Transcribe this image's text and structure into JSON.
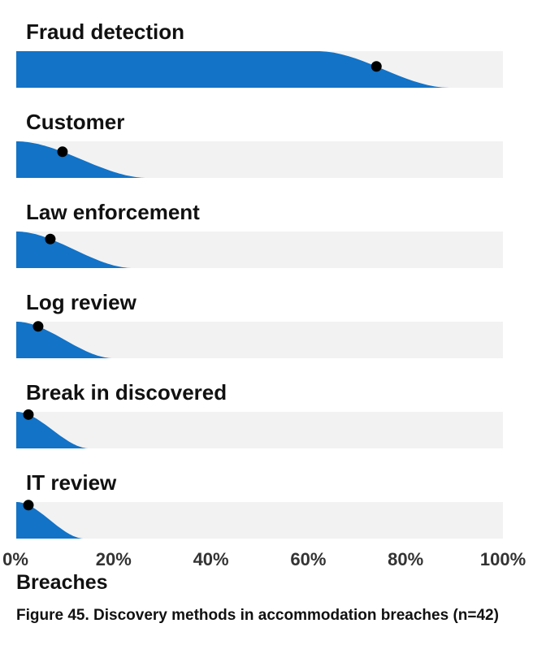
{
  "caption": "Figure 45. Discovery methods in accommodation breaches (n=42)",
  "colors": {
    "fill": "#1273c7",
    "track": "#f2f2f2",
    "point": "#000000",
    "text": "#111111"
  },
  "chart_data": {
    "type": "area",
    "chart_style": "slab interval (half-eye distribution with point estimate)",
    "categories": [
      "Fraud detection",
      "Customer",
      "Law enforcement",
      "Log review",
      "Break in discovered",
      "IT review"
    ],
    "estimates": [
      74,
      9.5,
      7,
      4.5,
      2.5,
      2.5
    ],
    "distribution_end": [
      89,
      27,
      24,
      20,
      15,
      14
    ],
    "xlabel": "Breaches",
    "ylabel": "",
    "xlim": [
      0,
      100
    ],
    "x_ticks": [
      0,
      20,
      40,
      60,
      80,
      100
    ],
    "x_tick_labels": [
      "0%",
      "20%",
      "40%",
      "60%",
      "80%",
      "100%"
    ],
    "grid": false,
    "legend": "none"
  }
}
